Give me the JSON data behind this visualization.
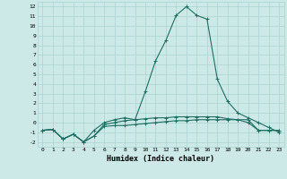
{
  "x": [
    0,
    1,
    2,
    3,
    4,
    5,
    6,
    7,
    8,
    9,
    10,
    11,
    12,
    13,
    14,
    15,
    16,
    17,
    18,
    19,
    20,
    21,
    22,
    23
  ],
  "line1": [
    -0.8,
    -0.7,
    -1.7,
    -1.2,
    -2.0,
    -1.4,
    -0.4,
    -0.3,
    -0.3,
    -0.2,
    -0.1,
    0.0,
    0.1,
    0.2,
    0.2,
    0.3,
    0.3,
    0.3,
    0.3,
    0.3,
    0.3,
    -0.8,
    -0.8,
    -0.8
  ],
  "line2": [
    -0.8,
    -0.7,
    -1.7,
    -1.2,
    -2.0,
    -1.4,
    -0.2,
    0.0,
    0.2,
    0.3,
    0.4,
    0.5,
    0.5,
    0.6,
    0.6,
    0.6,
    0.6,
    0.6,
    0.4,
    0.3,
    0.0,
    -0.8,
    -0.8,
    -0.8
  ],
  "line3": [
    -0.8,
    -0.7,
    -1.7,
    -1.2,
    -2.0,
    -0.8,
    0.0,
    0.3,
    0.5,
    0.3,
    3.2,
    6.4,
    8.5,
    11.1,
    12.0,
    11.1,
    10.7,
    4.5,
    2.2,
    1.0,
    0.5,
    0.0,
    -0.5,
    -1.0
  ],
  "bg_color": "#cce9e8",
  "grid_color": "#aad4d2",
  "line_color": "#1e6e62",
  "xlabel": "Humidex (Indice chaleur)",
  "ylim": [
    -2.5,
    12.5
  ],
  "xlim": [
    -0.5,
    23.5
  ],
  "yticks": [
    -2,
    -1,
    0,
    1,
    2,
    3,
    4,
    5,
    6,
    7,
    8,
    9,
    10,
    11,
    12
  ],
  "xticks": [
    0,
    1,
    2,
    3,
    4,
    5,
    6,
    7,
    8,
    9,
    10,
    11,
    12,
    13,
    14,
    15,
    16,
    17,
    18,
    19,
    20,
    21,
    22,
    23
  ],
  "xtick_labels": [
    "0",
    "1",
    "2",
    "3",
    "4",
    "5",
    "6",
    "7",
    "8",
    "9",
    "10",
    "11",
    "12",
    "13",
    "14",
    "15",
    "16",
    "17",
    "18",
    "19",
    "20",
    "21",
    "22",
    "23"
  ],
  "marker": "+",
  "marker_size": 3,
  "linewidth": 0.8
}
